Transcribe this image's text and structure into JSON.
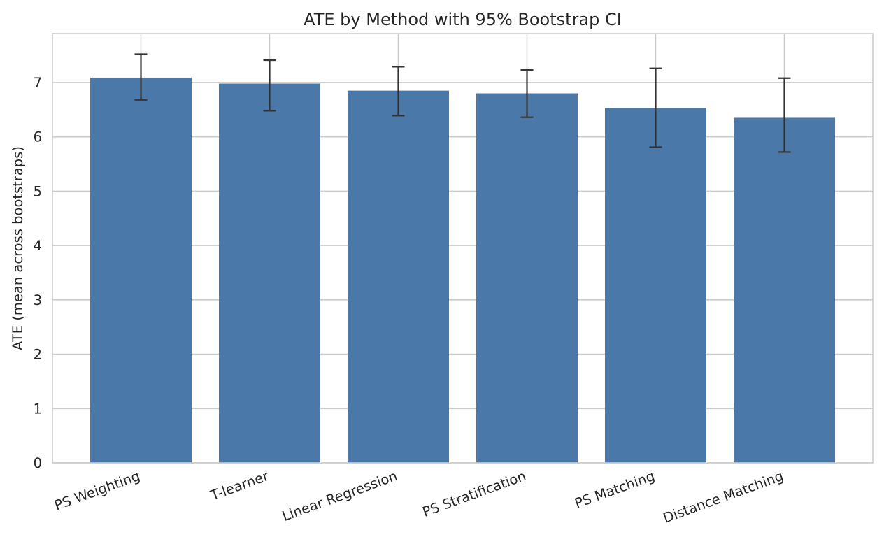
{
  "chart_data": {
    "type": "bar",
    "title": "ATE by Method with 95% Bootstrap CI",
    "xlabel": "",
    "ylabel": "ATE (mean across bootstraps)",
    "categories": [
      "PS Weighting",
      "T-learner",
      "Linear Regression",
      "PS Stratification",
      "PS Matching",
      "Distance Matching"
    ],
    "values": [
      7.09,
      6.98,
      6.85,
      6.8,
      6.53,
      6.35
    ],
    "ci_lower": [
      6.68,
      6.48,
      6.39,
      6.36,
      5.81,
      5.72
    ],
    "ci_upper": [
      7.52,
      7.41,
      7.29,
      7.23,
      7.26,
      7.08
    ],
    "ylim": [
      0,
      7.9
    ],
    "yticks": [
      "0",
      "1",
      "2",
      "3",
      "4",
      "5",
      "6",
      "7"
    ],
    "grid": true,
    "colors": {
      "bar": "#4a78a8",
      "error_bar": "#333333",
      "grid": "#cccccc",
      "axes_edge": "#cccccc"
    }
  }
}
